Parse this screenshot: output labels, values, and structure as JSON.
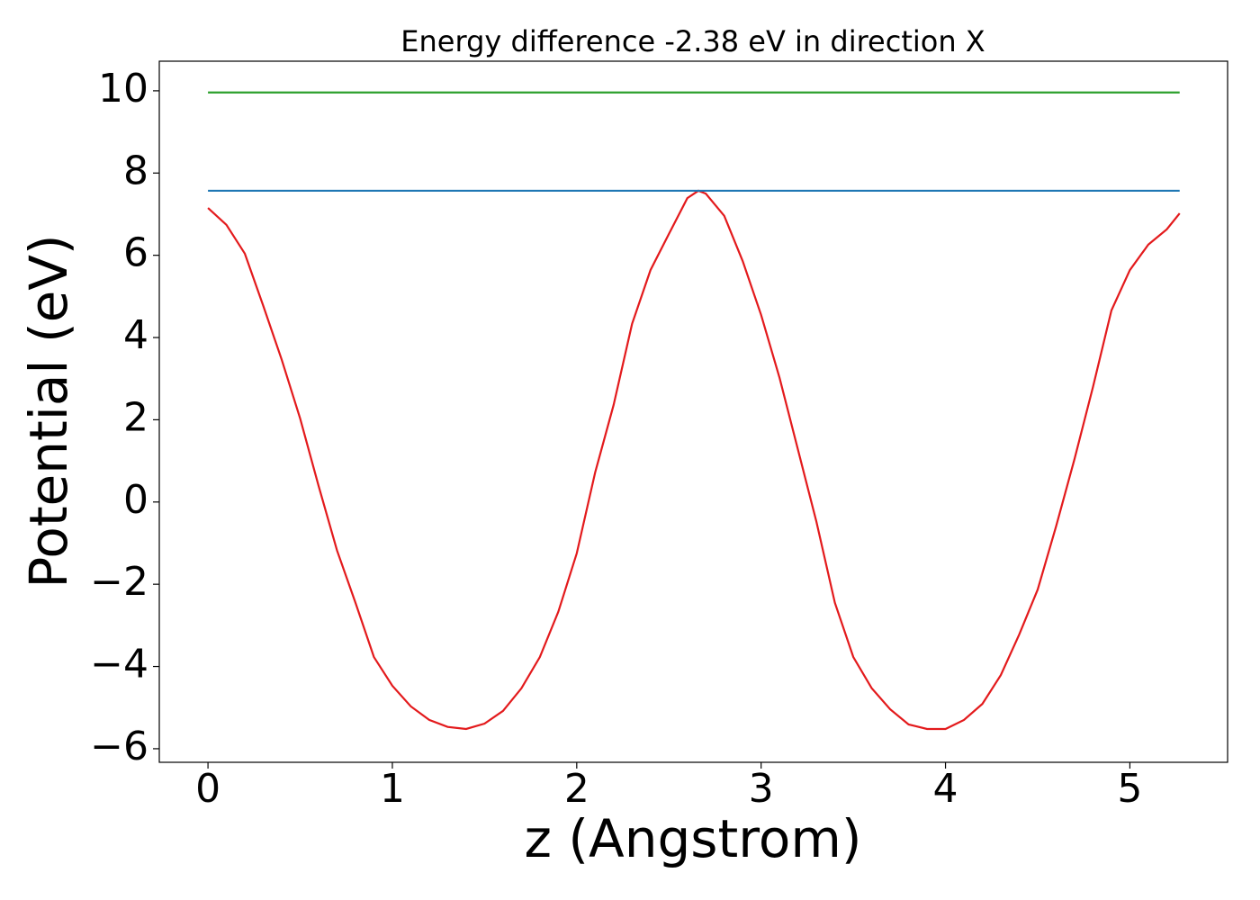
{
  "chart_data": {
    "type": "line",
    "title": "Energy difference -2.38 eV in direction X",
    "xlabel": "z (Angstrom)",
    "ylabel": "Potential (eV)",
    "xlim": [
      -0.264,
      5.53
    ],
    "ylim": [
      -6.33,
      10.72
    ],
    "xticks": [
      0,
      1,
      2,
      3,
      4,
      5
    ],
    "yticks": [
      {
        "value": -6,
        "label": "−6"
      },
      {
        "value": -4,
        "label": "−4"
      },
      {
        "value": -2,
        "label": "−2"
      },
      0,
      2,
      4,
      6,
      8,
      10
    ],
    "series": [
      {
        "color": "#e31a1c",
        "x": [
          0,
          0.1,
          0.2,
          0.3,
          0.4,
          0.5,
          0.6,
          0.7,
          0.8,
          0.9,
          1.0,
          1.1,
          1.2,
          1.3,
          1.4,
          1.5,
          1.6,
          1.7,
          1.8,
          1.9,
          2.0,
          2.1,
          2.2,
          2.3,
          2.4,
          2.5,
          2.6,
          2.66,
          2.7,
          2.8,
          2.9,
          3.0,
          3.1,
          3.2,
          3.3,
          3.4,
          3.5,
          3.6,
          3.7,
          3.8,
          3.9,
          4.0,
          4.1,
          4.2,
          4.3,
          4.4,
          4.5,
          4.6,
          4.7,
          4.8,
          4.9,
          5.0,
          5.1,
          5.2,
          5.27
        ],
        "values": [
          7.15,
          6.74,
          6.04,
          4.77,
          3.46,
          2.03,
          0.39,
          -1.18,
          -2.45,
          -3.77,
          -4.47,
          -4.97,
          -5.3,
          -5.47,
          -5.52,
          -5.39,
          -5.08,
          -4.53,
          -3.77,
          -2.67,
          -1.25,
          0.72,
          2.36,
          4.33,
          5.64,
          6.52,
          7.39,
          7.57,
          7.5,
          6.96,
          5.86,
          4.55,
          3.02,
          1.27,
          -0.48,
          -2.45,
          -3.77,
          -4.53,
          -5.04,
          -5.41,
          -5.52,
          -5.52,
          -5.3,
          -4.91,
          -4.21,
          -3.22,
          -2.13,
          -0.59,
          1.05,
          2.8,
          4.66,
          5.64,
          6.26,
          6.63,
          7.02
        ]
      },
      {
        "color": "#1f77b4",
        "x": [
          0,
          5.27
        ],
        "values": [
          7.57,
          7.57
        ]
      },
      {
        "color": "#2ca02c",
        "x": [
          0,
          5.27
        ],
        "values": [
          9.96,
          9.96
        ]
      }
    ]
  }
}
